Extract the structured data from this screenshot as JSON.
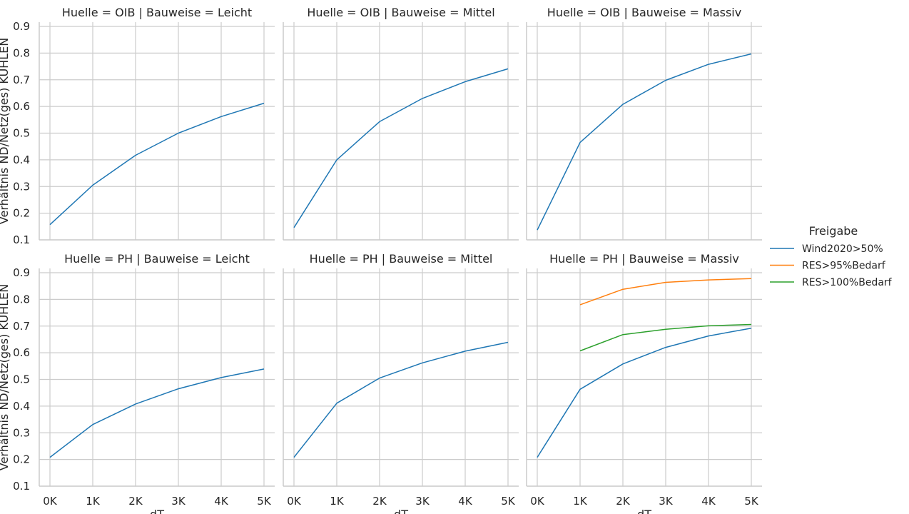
{
  "chart_data": {
    "type": "line",
    "facet_layout": "2x3 grid, shared axes",
    "x": [
      "0K",
      "1K",
      "2K",
      "3K",
      "4K",
      "5K"
    ],
    "ylim": [
      0.1,
      0.9
    ],
    "yticks": [
      "0.1",
      "0.2",
      "0.3",
      "0.4",
      "0.5",
      "0.6",
      "0.7",
      "0.8",
      "0.9"
    ],
    "xlabel": "dT",
    "ylabel": "Verhältnis ND/Netz(ges) KÜHLEN",
    "grid": true,
    "legend": {
      "title": "Freigabe",
      "placement": "right",
      "entries": [
        {
          "name": "Wind2020>50%",
          "color": "#1f77b4"
        },
        {
          "name": "RES>95%Bedarf",
          "color": "#ff7f0e"
        },
        {
          "name": "RES>100%Bedarf",
          "color": "#2ca02c"
        }
      ]
    },
    "panels": [
      {
        "title": "Huelle = OIB | Bauweise = Leicht",
        "series": [
          {
            "name": "Wind2020>50%",
            "x": [
              "0K",
              "1K",
              "2K",
              "3K",
              "4K",
              "5K"
            ],
            "values": [
              0.157,
              0.305,
              0.417,
              0.5,
              0.562,
              0.612
            ]
          }
        ]
      },
      {
        "title": "Huelle = OIB | Bauweise = Mittel",
        "series": [
          {
            "name": "Wind2020>50%",
            "x": [
              "0K",
              "1K",
              "2K",
              "3K",
              "4K",
              "5K"
            ],
            "values": [
              0.146,
              0.4,
              0.543,
              0.63,
              0.693,
              0.741
            ]
          }
        ]
      },
      {
        "title": "Huelle = OIB | Bauweise = Massiv",
        "series": [
          {
            "name": "Wind2020>50%",
            "x": [
              "0K",
              "1K",
              "2K",
              "3K",
              "4K",
              "5K"
            ],
            "values": [
              0.137,
              0.465,
              0.608,
              0.698,
              0.758,
              0.797
            ]
          }
        ]
      },
      {
        "title": "Huelle = PH | Bauweise = Leicht",
        "series": [
          {
            "name": "Wind2020>50%",
            "x": [
              "0K",
              "1K",
              "2K",
              "3K",
              "4K",
              "5K"
            ],
            "values": [
              0.208,
              0.331,
              0.408,
              0.465,
              0.507,
              0.539
            ]
          }
        ]
      },
      {
        "title": "Huelle = PH | Bauweise = Mittel",
        "series": [
          {
            "name": "Wind2020>50%",
            "x": [
              "0K",
              "1K",
              "2K",
              "3K",
              "4K",
              "5K"
            ],
            "values": [
              0.208,
              0.411,
              0.505,
              0.562,
              0.606,
              0.639
            ]
          }
        ]
      },
      {
        "title": "Huelle = PH | Bauweise = Massiv",
        "series": [
          {
            "name": "Wind2020>50%",
            "x": [
              "0K",
              "1K",
              "2K",
              "3K",
              "4K",
              "5K"
            ],
            "values": [
              0.208,
              0.463,
              0.558,
              0.62,
              0.663,
              0.692
            ]
          },
          {
            "name": "RES>95%Bedarf",
            "x": [
              "1K",
              "2K",
              "3K",
              "4K",
              "5K"
            ],
            "values": [
              0.78,
              0.838,
              0.864,
              0.873,
              0.878
            ]
          },
          {
            "name": "RES>100%Bedarf",
            "x": [
              "1K",
              "2K",
              "3K",
              "4K",
              "5K"
            ],
            "values": [
              0.607,
              0.668,
              0.688,
              0.701,
              0.706
            ]
          }
        ]
      }
    ]
  }
}
